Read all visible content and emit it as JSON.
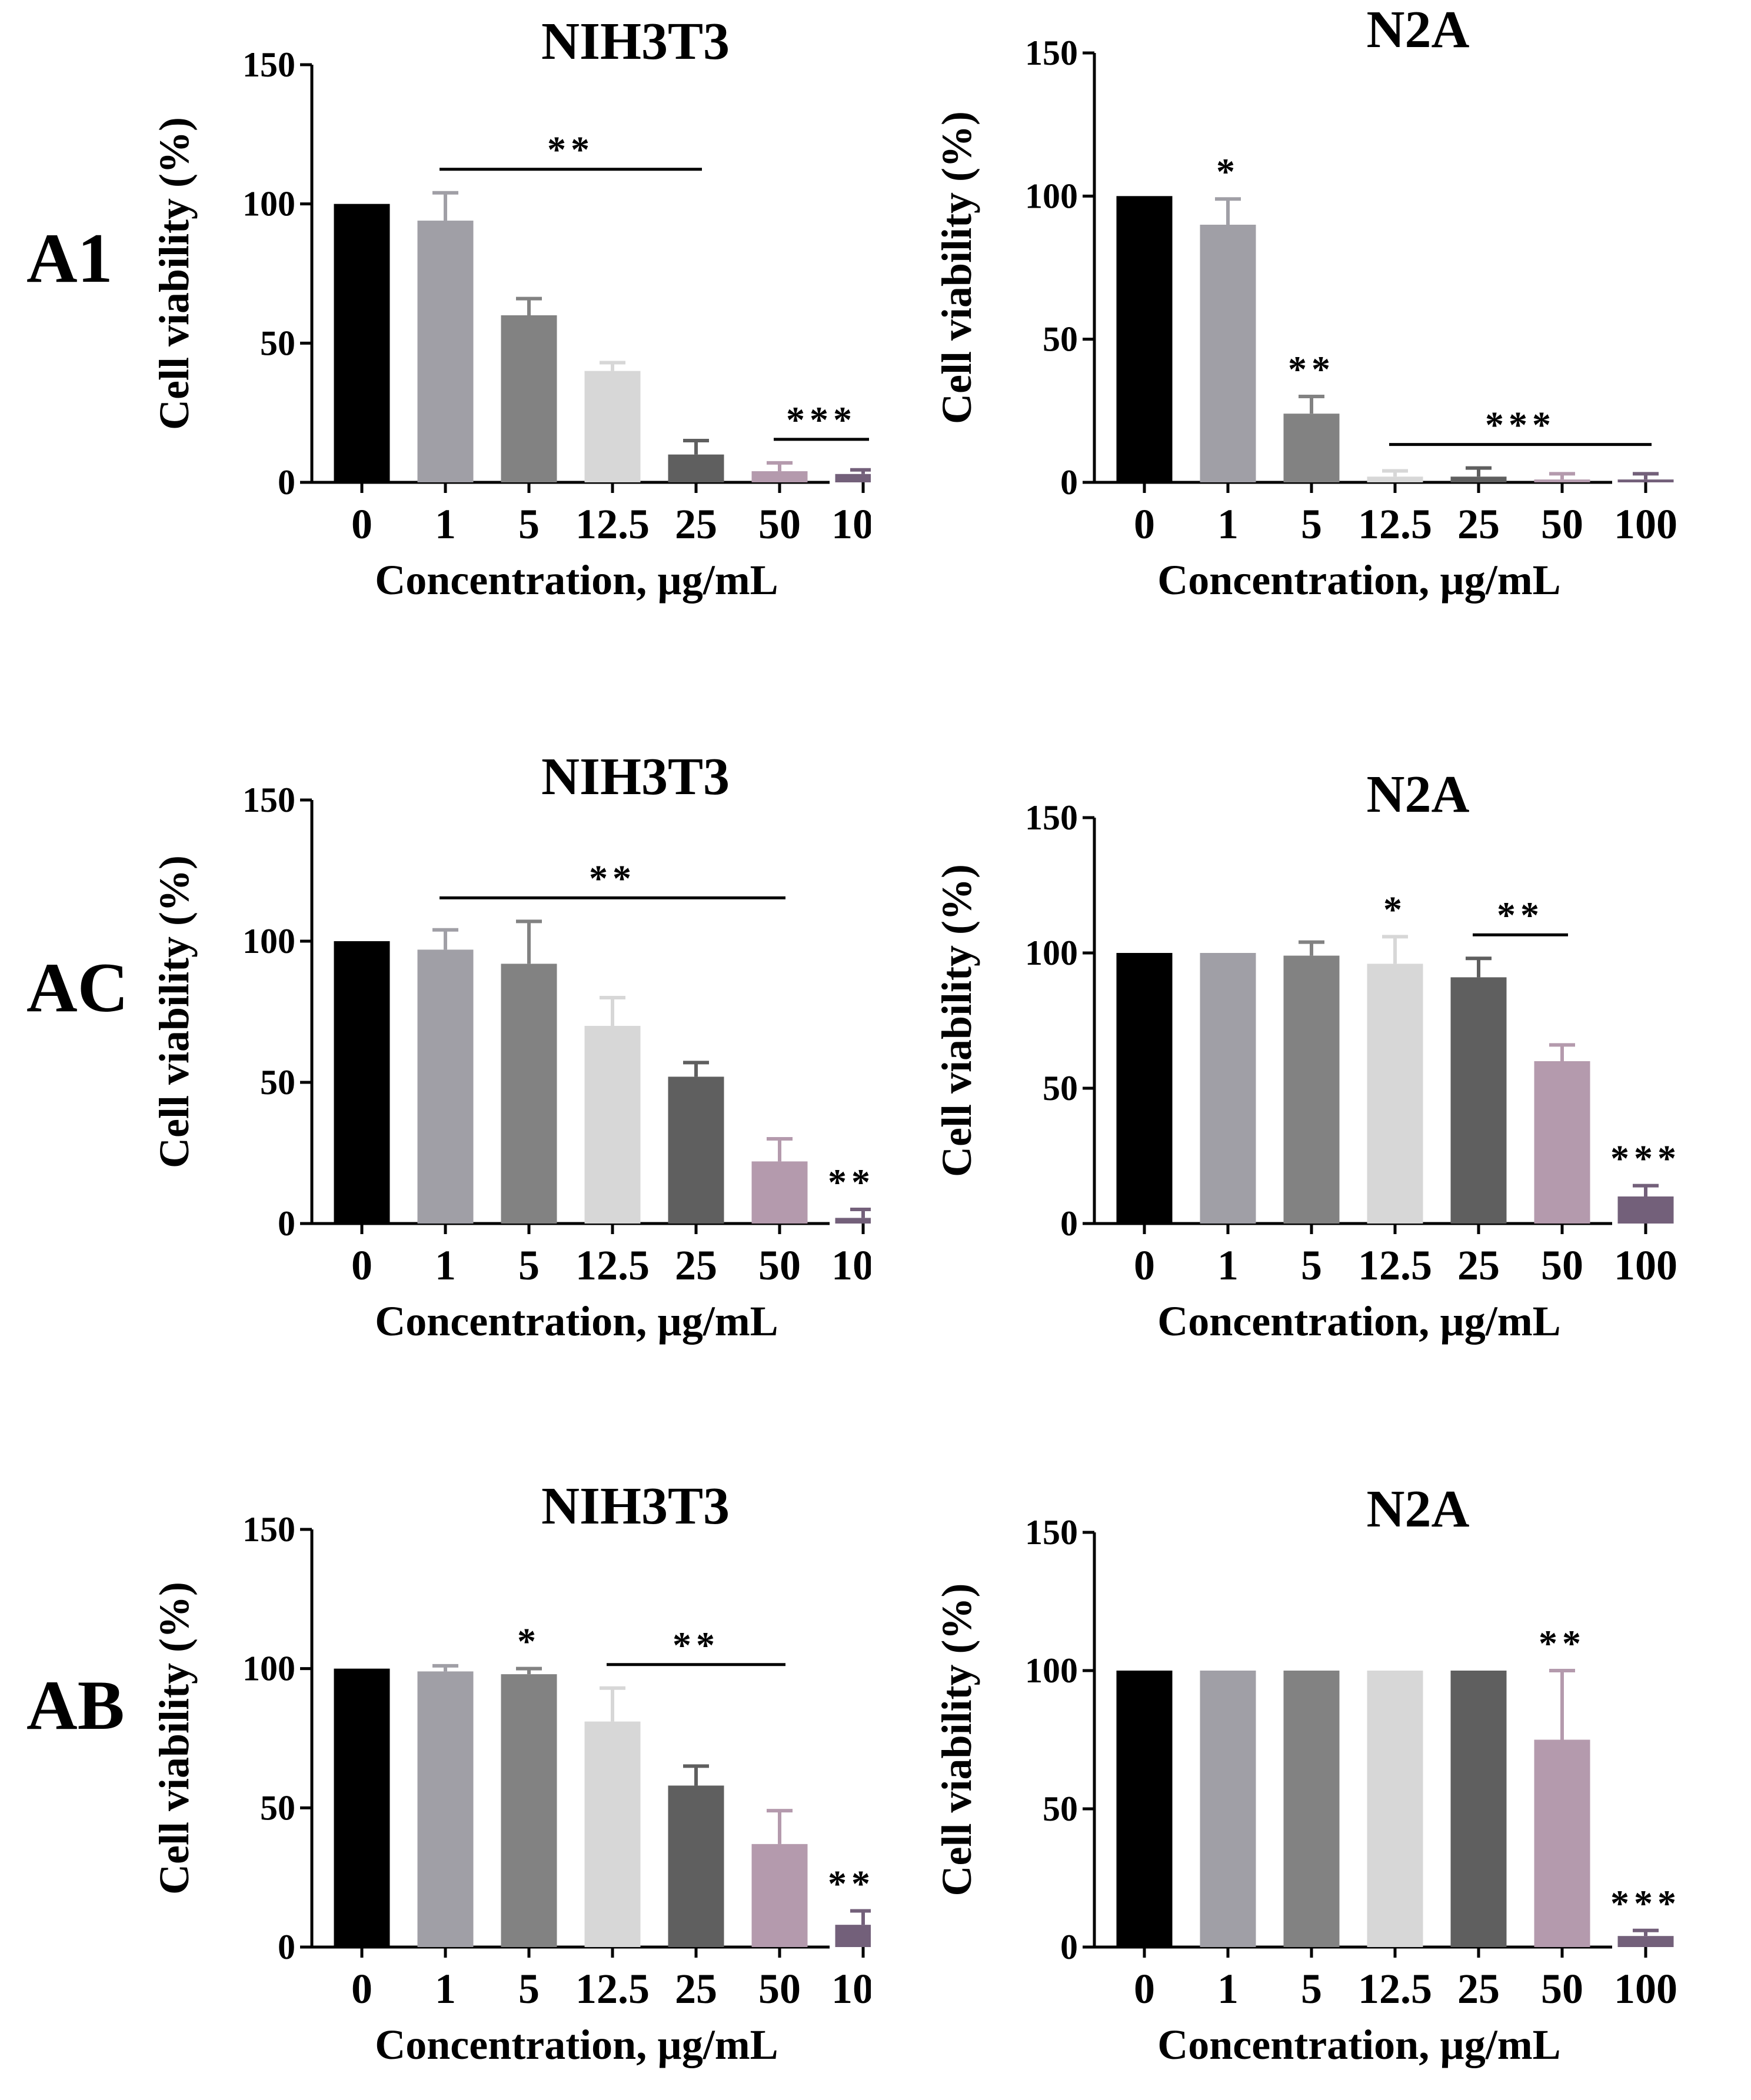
{
  "row_labels": [
    "A1",
    "AC",
    "AB"
  ],
  "common": {
    "ylabel": "Cell viability (%)",
    "xlabel": "Concentration, µg/mL",
    "categories": [
      "0",
      "1",
      "5",
      "12.5",
      "25",
      "50",
      "100"
    ],
    "ylim": [
      0,
      150
    ],
    "yticks": [
      0,
      50,
      100,
      150
    ],
    "bar_colors": [
      "#000000",
      "#a09fa6",
      "#828282",
      "#d7d7d7",
      "#5f5f5f",
      "#b49aad",
      "#73607a"
    ]
  },
  "chart_data": [
    {
      "type": "bar",
      "title": "NIH3T3",
      "values": [
        100,
        94,
        60,
        40,
        10,
        4,
        3
      ],
      "errors": [
        0,
        10,
        6,
        3,
        5,
        3,
        1.5
      ],
      "annotations": [
        {
          "text": "**",
          "line": [
            1,
            4
          ]
        },
        {
          "text": "***",
          "line": [
            5,
            6
          ]
        }
      ]
    },
    {
      "type": "bar",
      "title": "N2A",
      "values": [
        100,
        90,
        24,
        2,
        2,
        1,
        1
      ],
      "errors": [
        0,
        9,
        6,
        2,
        3,
        2,
        2
      ],
      "annotations": [
        {
          "text": "*",
          "over": 1
        },
        {
          "text": "**",
          "over": 2
        },
        {
          "text": "***",
          "line": [
            3,
            6
          ]
        }
      ]
    },
    {
      "type": "bar",
      "title": "NIH3T3",
      "values": [
        100,
        97,
        92,
        70,
        52,
        22,
        2
      ],
      "errors": [
        0,
        7,
        15,
        10,
        5,
        8,
        3
      ],
      "annotations": [
        {
          "text": "**",
          "line": [
            1,
            5
          ]
        },
        {
          "text": "***",
          "over": 6
        }
      ]
    },
    {
      "type": "bar",
      "title": "N2A",
      "values": [
        100,
        100,
        99,
        96,
        91,
        60,
        10
      ],
      "errors": [
        0,
        0,
        5,
        10,
        7,
        6,
        4
      ],
      "annotations": [
        {
          "text": "*",
          "over": 3
        },
        {
          "text": "**",
          "line": [
            4,
            5
          ]
        },
        {
          "text": "***",
          "over": 6
        }
      ]
    },
    {
      "type": "bar",
      "title": "NIH3T3",
      "values": [
        100,
        99,
        98,
        81,
        58,
        37,
        8
      ],
      "errors": [
        0,
        2,
        2,
        12,
        7,
        12,
        5
      ],
      "annotations": [
        {
          "text": "*",
          "over": 2
        },
        {
          "text": "**",
          "line": [
            3,
            5
          ]
        },
        {
          "text": "***",
          "over": 6
        }
      ]
    },
    {
      "type": "bar",
      "title": "N2A",
      "values": [
        100,
        100,
        100,
        100,
        100,
        75,
        4
      ],
      "errors": [
        0,
        0,
        0,
        0,
        0,
        25,
        2
      ],
      "annotations": [
        {
          "text": "**",
          "over": 5
        },
        {
          "text": "***",
          "over": 6
        }
      ]
    }
  ]
}
